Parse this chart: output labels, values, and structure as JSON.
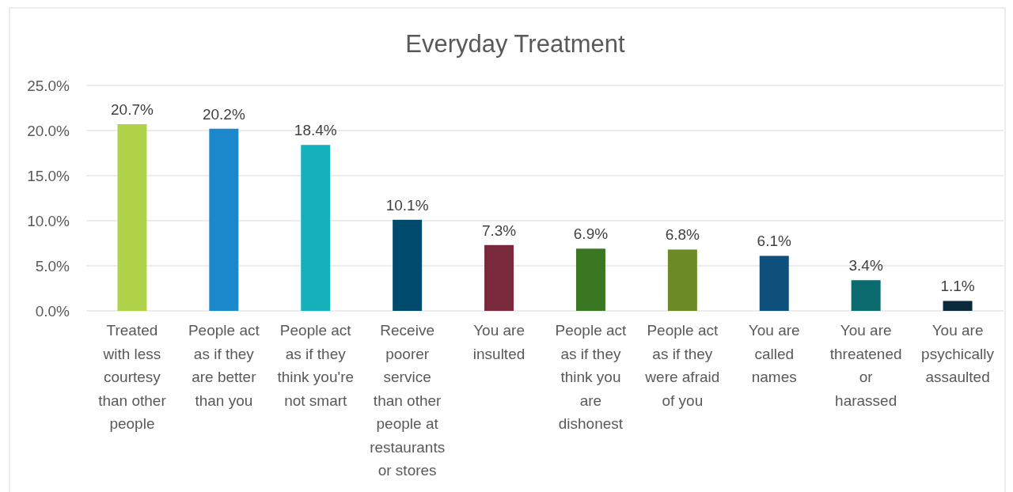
{
  "chart_data": {
    "type": "bar",
    "title": "Everyday Treatment",
    "categories": [
      "Treated with less courtesy than other people",
      "People act as if they are better than you",
      "People act as if they think you're not smart",
      "Receive poorer service than other people at restaurants or stores",
      "You are insulted",
      "People act as if they think you are dishonest",
      "People act as if they were afraid of you",
      "You are called names",
      "You are threatened or harassed",
      "You are psychically assaulted"
    ],
    "values": [
      20.7,
      20.2,
      18.4,
      10.1,
      7.3,
      6.9,
      6.8,
      6.1,
      3.4,
      1.1
    ],
    "colors": [
      "#b0d34a",
      "#1b88cc",
      "#14b0bb",
      "#004b6d",
      "#7a283c",
      "#3a7722",
      "#6c8a26",
      "#0f4f7c",
      "#0b6b6e",
      "#0a2a3c"
    ],
    "value_labels": [
      "20.7%",
      "20.2%",
      "18.4%",
      "10.1%",
      "7.3%",
      "6.9%",
      "6.8%",
      "6.1%",
      "3.4%",
      "1.1%"
    ],
    "ylim": [
      0,
      25
    ],
    "yticks": [
      {
        "value": 0,
        "label": "0.0%"
      },
      {
        "value": 5,
        "label": "5.0%"
      },
      {
        "value": 10,
        "label": "10.0%"
      },
      {
        "value": 15,
        "label": "15.0%"
      },
      {
        "value": 20,
        "label": "20.0%"
      },
      {
        "value": 25,
        "label": "25.0%"
      }
    ],
    "grid": "y"
  }
}
